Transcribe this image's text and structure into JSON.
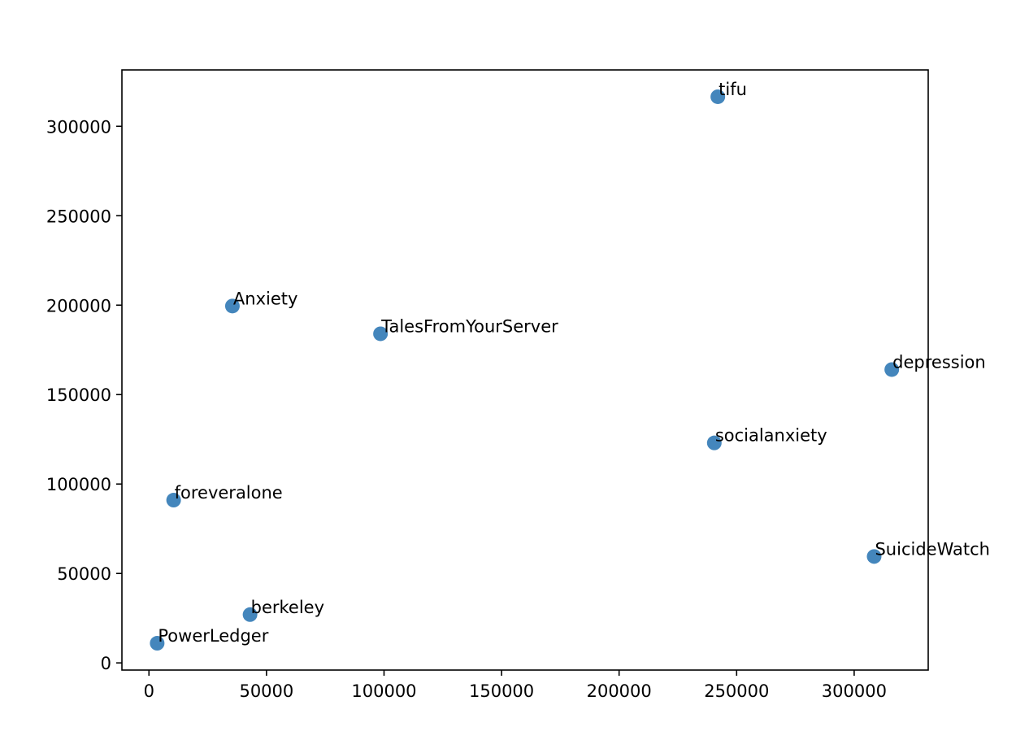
{
  "chart_data": {
    "type": "scatter",
    "title": "",
    "xlabel": "",
    "ylabel": "",
    "xlim": [
      -11500,
      331500
    ],
    "ylim": [
      -4000,
      331500
    ],
    "xticks": [
      0,
      50000,
      100000,
      150000,
      200000,
      250000,
      300000
    ],
    "yticks": [
      0,
      50000,
      100000,
      150000,
      200000,
      250000,
      300000
    ],
    "xtick_labels": [
      "0",
      "50000",
      "100000",
      "150000",
      "200000",
      "250000",
      "300000"
    ],
    "ytick_labels": [
      "0",
      "50000",
      "100000",
      "150000",
      "200000",
      "250000",
      "300000"
    ],
    "grid": false,
    "marker_color": "#3a7fb8",
    "points": [
      {
        "label": "tifu",
        "x": 242000,
        "y": 316500
      },
      {
        "label": "Anxiety",
        "x": 35500,
        "y": 199500
      },
      {
        "label": "TalesFromYourServer",
        "x": 98500,
        "y": 184000
      },
      {
        "label": "depression",
        "x": 316000,
        "y": 164000
      },
      {
        "label": "socialanxiety",
        "x": 240500,
        "y": 123000
      },
      {
        "label": "foreveralone",
        "x": 10500,
        "y": 91000
      },
      {
        "label": "SuicideWatch",
        "x": 308500,
        "y": 59500
      },
      {
        "label": "berkeley",
        "x": 43000,
        "y": 27000
      },
      {
        "label": "PowerLedger",
        "x": 3500,
        "y": 11000
      }
    ]
  }
}
